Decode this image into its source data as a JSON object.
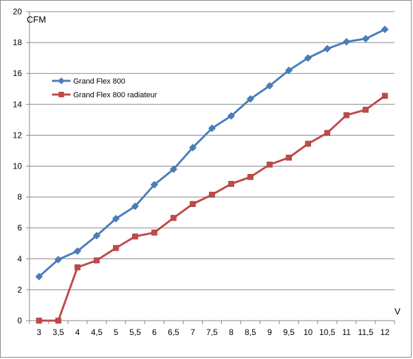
{
  "chart_data": {
    "type": "line",
    "title": "",
    "xlabel": "V",
    "ylabel": "CFM",
    "categories": [
      "3",
      "3,5",
      "4",
      "4,5",
      "5",
      "5,5",
      "6",
      "6,5",
      "7",
      "7,5",
      "8",
      "8,5",
      "9",
      "9,5",
      "10",
      "10,5",
      "11",
      "11,5",
      "12"
    ],
    "ylim": [
      0,
      20
    ],
    "yticks": [
      0,
      2,
      4,
      6,
      8,
      10,
      12,
      14,
      16,
      18,
      20
    ],
    "grid": "horizontal",
    "legend_position": "left",
    "series": [
      {
        "name": "Grand Flex 800",
        "color": "#4A7EBB",
        "marker": "diamond",
        "values": [
          2.85,
          3.95,
          4.5,
          5.5,
          6.6,
          7.4,
          8.8,
          9.8,
          11.2,
          12.45,
          13.25,
          14.35,
          15.2,
          16.2,
          17.0,
          17.6,
          18.05,
          18.25,
          18.85
        ]
      },
      {
        "name": "Grand Flex 800 radiateur",
        "color": "#BE4B48",
        "marker": "square",
        "values": [
          0,
          0,
          3.45,
          3.9,
          4.7,
          5.45,
          5.7,
          6.65,
          7.55,
          8.15,
          8.85,
          9.3,
          10.1,
          10.55,
          11.45,
          12.15,
          13.3,
          13.65,
          14.55
        ]
      }
    ]
  }
}
